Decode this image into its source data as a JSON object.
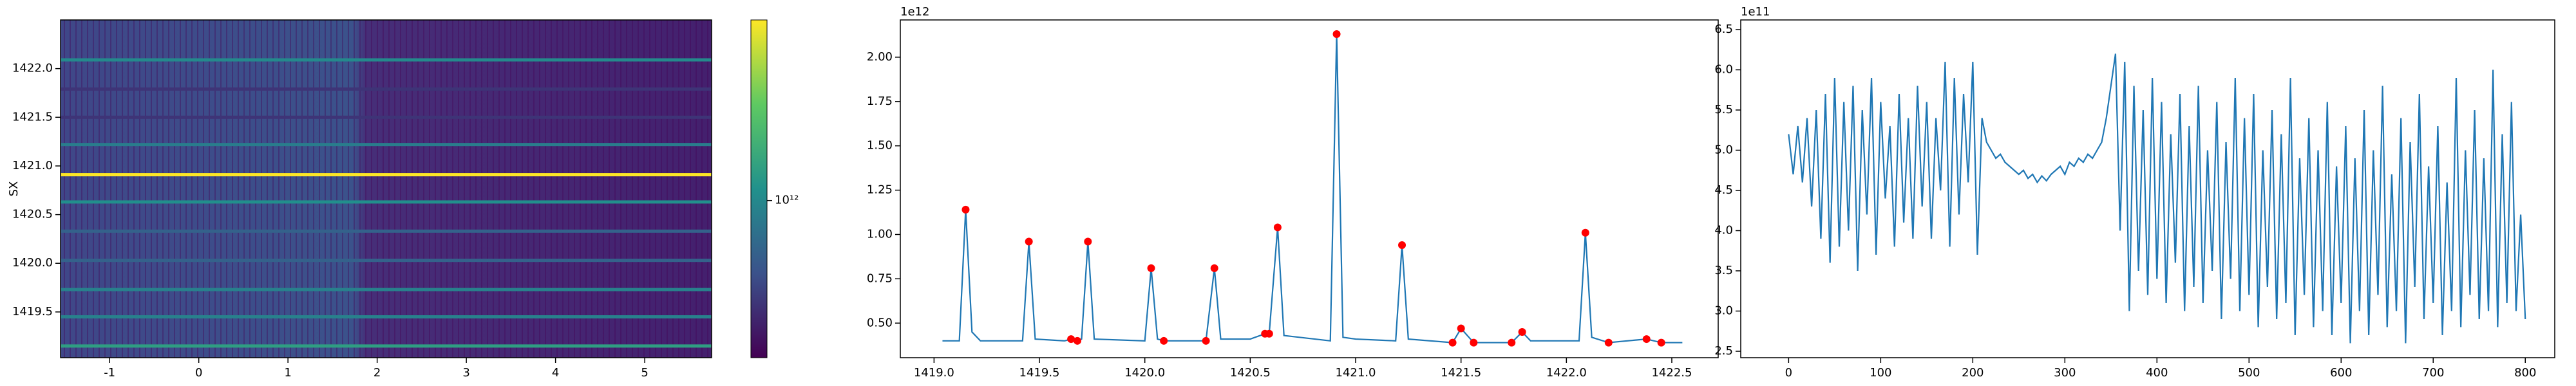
{
  "chart_data": [
    {
      "type": "heatmap",
      "ylabel": "SX",
      "xlim": [
        -1.55,
        5.75
      ],
      "xticks": [
        -1,
        0,
        1,
        2,
        3,
        4,
        5
      ],
      "ylim": [
        1419.03,
        1422.5
      ],
      "yticks": [
        1419.5,
        {
          "value": 1420,
          "label": "1420.0"
        },
        1420.5,
        {
          "value": 1421,
          "label": "1421.0"
        },
        1421.5,
        {
          "value": 1422,
          "label": "1422.0"
        }
      ],
      "y": [
        1419.15,
        1419.45,
        1419.73,
        1420.03,
        1420.33,
        1420.63,
        1420.91,
        1421.22,
        1421.5,
        1421.79,
        1422.09
      ],
      "values": [
        1140000000000.0,
        960000000000.0,
        960000000000.0,
        810000000000.0,
        810000000000.0,
        1040000000000.0,
        2130000000000.0,
        940000000000.0,
        650000000000.0,
        650000000000.0,
        1010000000000.0
      ],
      "colormap": "viridis",
      "log_color": true,
      "clim": [
        520000000000.0,
        2120000000000.0
      ],
      "colorbar_ticks": [
        {
          "value": 1000000000000.0,
          "label": "10¹²"
        }
      ]
    },
    {
      "type": "line",
      "offset_text": "1e12",
      "xlim": [
        1418.84,
        1422.72
      ],
      "xticks": [
        {
          "value": 1419,
          "label": "1419.0"
        },
        1419.5,
        {
          "value": 1420,
          "label": "1420.0"
        },
        1420.5,
        {
          "value": 1421,
          "label": "1421.0"
        },
        1421.5,
        {
          "value": 1422,
          "label": "1422.0"
        },
        1422.5
      ],
      "ylim": [
        0.305,
        2.21
      ],
      "yticks": [
        {
          "value": 0.5,
          "label": "0.50"
        },
        {
          "value": 0.75,
          "label": "0.75"
        },
        {
          "value": 1,
          "label": "1.00"
        },
        {
          "value": 1.25,
          "label": "1.25"
        },
        {
          "value": 1.5,
          "label": "1.50"
        },
        {
          "value": 1.75,
          "label": "1.75"
        },
        {
          "value": 2,
          "label": "2.00"
        }
      ],
      "series": [
        {
          "color": "#1f77b4",
          "line": true,
          "x": [
            1419.04,
            1419.12,
            1419.15,
            1419.18,
            1419.22,
            1419.42,
            1419.45,
            1419.48,
            1419.62,
            1419.65,
            1419.68,
            1419.7,
            1419.73,
            1419.76,
            1420.0,
            1420.03,
            1420.06,
            1420.09,
            1420.29,
            1420.33,
            1420.36,
            1420.5,
            1420.57,
            1420.59,
            1420.63,
            1420.66,
            1420.88,
            1420.91,
            1420.94,
            1421.0,
            1421.19,
            1421.22,
            1421.25,
            1421.46,
            1421.5,
            1421.56,
            1421.74,
            1421.79,
            1421.83,
            1422.06,
            1422.09,
            1422.12,
            1422.2,
            1422.38,
            1422.45,
            1422.55
          ],
          "values": [
            0.4,
            0.4,
            1.14,
            0.45,
            0.4,
            0.4,
            0.96,
            0.41,
            0.4,
            0.41,
            0.4,
            0.41,
            0.96,
            0.41,
            0.4,
            0.81,
            0.41,
            0.4,
            0.4,
            0.81,
            0.41,
            0.41,
            0.44,
            0.44,
            1.04,
            0.43,
            0.4,
            2.13,
            0.42,
            0.41,
            0.4,
            0.94,
            0.41,
            0.39,
            0.47,
            0.39,
            0.39,
            0.45,
            0.4,
            0.4,
            1.01,
            0.42,
            0.39,
            0.41,
            0.39,
            0.39
          ]
        },
        {
          "color": "red",
          "line": false,
          "marker": "circle",
          "x": [
            1419.15,
            1419.45,
            1419.65,
            1419.68,
            1419.73,
            1420.03,
            1420.09,
            1420.29,
            1420.33,
            1420.57,
            1420.59,
            1420.63,
            1420.91,
            1421.22,
            1421.46,
            1421.5,
            1421.56,
            1421.74,
            1421.79,
            1422.09,
            1422.2,
            1422.38,
            1422.45
          ],
          "values": [
            1.14,
            0.96,
            0.41,
            0.4,
            0.96,
            0.81,
            0.4,
            0.4,
            0.81,
            0.44,
            0.44,
            1.04,
            2.13,
            0.94,
            0.39,
            0.47,
            0.39,
            0.39,
            0.45,
            1.01,
            0.39,
            0.41,
            0.39
          ]
        }
      ]
    },
    {
      "type": "line",
      "offset_text": "1e11",
      "xlim": [
        -52,
        832
      ],
      "xticks": [
        0,
        100,
        200,
        300,
        400,
        500,
        600,
        700,
        800
      ],
      "ylim": [
        2.42,
        6.62
      ],
      "yticks": [
        2.5,
        {
          "value": 3,
          "label": "3.0"
        },
        3.5,
        {
          "value": 4,
          "label": "4.0"
        },
        4.5,
        {
          "value": 5,
          "label": "5.0"
        },
        5.5,
        {
          "value": 6,
          "label": "6.0"
        },
        6.5
      ],
      "series": [
        {
          "color": "#1f77b4",
          "line": true,
          "x": [
            0,
            5,
            10,
            15,
            20,
            25,
            30,
            35,
            40,
            45,
            50,
            55,
            60,
            65,
            70,
            75,
            80,
            85,
            90,
            95,
            100,
            105,
            110,
            115,
            120,
            125,
            130,
            135,
            140,
            145,
            150,
            155,
            160,
            165,
            170,
            175,
            180,
            185,
            190,
            195,
            200,
            205,
            210,
            215,
            220,
            225,
            230,
            235,
            240,
            245,
            250,
            255,
            260,
            265,
            270,
            275,
            280,
            285,
            290,
            295,
            300,
            305,
            310,
            315,
            320,
            325,
            330,
            335,
            340,
            345,
            350,
            355,
            360,
            365,
            370,
            375,
            380,
            385,
            390,
            395,
            400,
            405,
            410,
            415,
            420,
            425,
            430,
            435,
            440,
            445,
            450,
            455,
            460,
            465,
            470,
            475,
            480,
            485,
            490,
            495,
            500,
            505,
            510,
            515,
            520,
            525,
            530,
            535,
            540,
            545,
            550,
            555,
            560,
            565,
            570,
            575,
            580,
            585,
            590,
            595,
            600,
            605,
            610,
            615,
            620,
            625,
            630,
            635,
            640,
            645,
            650,
            655,
            660,
            665,
            670,
            675,
            680,
            685,
            690,
            695,
            700,
            705,
            710,
            715,
            720,
            725,
            730,
            735,
            740,
            745,
            750,
            755,
            760,
            765,
            770,
            775,
            780,
            785,
            790,
            795,
            800
          ],
          "values": [
            5.2,
            4.7,
            5.3,
            4.6,
            5.4,
            4.3,
            5.5,
            3.9,
            5.7,
            3.6,
            5.9,
            3.8,
            5.6,
            4.0,
            5.8,
            3.5,
            5.5,
            4.2,
            5.9,
            3.7,
            5.6,
            4.4,
            5.3,
            3.8,
            5.7,
            4.1,
            5.4,
            3.9,
            5.8,
            4.3,
            5.6,
            3.9,
            5.4,
            4.5,
            6.1,
            3.8,
            5.9,
            4.2,
            5.7,
            4.6,
            6.1,
            3.7,
            5.4,
            5.1,
            5.0,
            4.9,
            4.95,
            4.85,
            4.8,
            4.75,
            4.7,
            4.75,
            4.65,
            4.7,
            4.6,
            4.68,
            4.62,
            4.7,
            4.75,
            4.8,
            4.7,
            4.85,
            4.8,
            4.9,
            4.85,
            4.95,
            4.9,
            5.0,
            5.1,
            5.4,
            5.8,
            6.2,
            4.0,
            6.1,
            3.0,
            5.8,
            3.5,
            5.5,
            3.2,
            5.9,
            3.4,
            5.6,
            3.1,
            5.2,
            3.6,
            5.7,
            3.0,
            5.3,
            3.3,
            5.8,
            3.1,
            5.0,
            3.5,
            5.6,
            2.9,
            5.1,
            3.4,
            5.9,
            3.0,
            5.4,
            3.2,
            5.7,
            2.8,
            5.0,
            3.3,
            5.5,
            2.9,
            5.2,
            3.1,
            5.9,
            2.7,
            4.9,
            3.2,
            5.4,
            2.8,
            5.0,
            3.0,
            5.6,
            2.7,
            4.8,
            3.1,
            5.3,
            2.6,
            4.9,
            3.0,
            5.5,
            2.7,
            5.0,
            3.2,
            5.8,
            2.8,
            4.7,
            3.0,
            5.4,
            2.6,
            5.1,
            3.3,
            5.7,
            2.9,
            4.8,
            3.1,
            5.3,
            2.7,
            4.6,
            3.0,
            5.9,
            2.8,
            5.0,
            3.2,
            5.5,
            2.9,
            4.9,
            3.0,
            6.0,
            2.8,
            5.2,
            3.1,
            5.6,
            3.0,
            4.2,
            2.9
          ]
        }
      ]
    }
  ]
}
